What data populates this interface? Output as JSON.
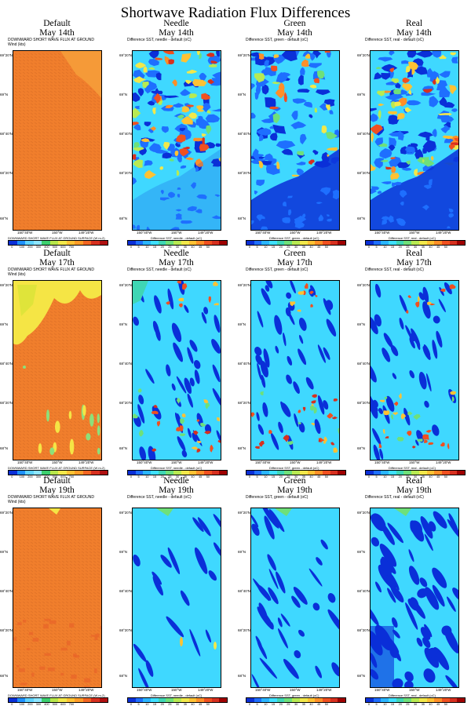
{
  "title": "Shortwave Radiation Flux Differences",
  "rows": [
    {
      "date": "May 14th",
      "panels": [
        {
          "name": "Default",
          "var": "DOWNWARD SHORT WAVE FLUX AT GROUND",
          "sub2": "Wind   (kts)",
          "cbar_title": "DOWNWARD SHORT WAVE FLUX AT GROUND SURFACE   (W m-2)"
        },
        {
          "name": "Needle",
          "var": "Difference SST, needle - default   (oC)",
          "sub2": "",
          "cbar_title": "Difference SST, needle - default   (oC)"
        },
        {
          "name": "Green",
          "var": "Difference SST, green - default   (oC)",
          "sub2": "",
          "cbar_title": "Difference SST, green - default   (oC)"
        },
        {
          "name": "Real",
          "var": "Difference SST, real - default   (oC)",
          "sub2": "",
          "cbar_title": "Difference SST, real - default   (oC)"
        }
      ]
    },
    {
      "date": "May 17th",
      "panels": [
        {
          "name": "Default",
          "var": "DOWNWARD SHORT WAVE FLUX AT GROUND",
          "sub2": "Wind   (kts)",
          "cbar_title": "DOWNWARD SHORT WAVE FLUX AT GROUND SURFACE   (W m-2)"
        },
        {
          "name": "Needle",
          "var": "Difference SST, needle - default   (oC)",
          "sub2": "",
          "cbar_title": "Difference SST, needle - default   (oC)"
        },
        {
          "name": "Green",
          "var": "Difference SST, green - default   (oC)",
          "sub2": "",
          "cbar_title": "Difference SST, green - default   (oC)"
        },
        {
          "name": "Real",
          "var": "Difference SST, real - default   (oC)",
          "sub2": "",
          "cbar_title": "Difference SST, real - default   (oC)"
        }
      ]
    },
    {
      "date": "May 19th",
      "panels": [
        {
          "name": "Default",
          "var": "DOWNWARD SHORT WAVE FLUX AT GROUND",
          "sub2": "Wind   (kts)",
          "cbar_title": "DOWNWARD SHORT WAVE FLUX AT GROUND SURFACE   (W m-2)"
        },
        {
          "name": "Needle",
          "var": "Difference SST, needle - default   (oC)",
          "sub2": "",
          "cbar_title": "Difference SST, needle - default   (oC)"
        },
        {
          "name": "Green",
          "var": "Difference SST, green - default   (oC)",
          "sub2": "",
          "cbar_title": "Difference SST, green - default   (oC)"
        },
        {
          "name": "Real",
          "var": "Difference SST, real - default   (oC)",
          "sub2": "",
          "cbar_title": "Difference SST, real - default   (oC)"
        }
      ]
    }
  ],
  "lat_labels": [
    "69°20'N",
    "69°N",
    "68°40'N",
    "68°20'N",
    "68°N"
  ],
  "lon_labels": [
    "150°40'W",
    "150°W",
    "149°20'W"
  ],
  "default_ticks": [
    "0",
    "100",
    "200",
    "300",
    "400",
    "500",
    "600",
    "700"
  ],
  "diff_ticks": [
    "0",
    "5",
    "10",
    "15",
    "20",
    "25",
    "30",
    "35",
    "40",
    "45",
    "50"
  ],
  "default_colors": [
    "#0a2fd8",
    "#1e90ff",
    "#5fd3ff",
    "#8ee6ff",
    "#3ccf6e",
    "#b7e64a",
    "#f2e84a",
    "#ffc233",
    "#ff9c28",
    "#f26522",
    "#d7301f",
    "#b01010"
  ],
  "diff_colors": [
    "#0a2fd8",
    "#1e6fff",
    "#2ab5ff",
    "#3fe0ff",
    "#3fd6b4",
    "#6ee07a",
    "#b8ea52",
    "#f2e84a",
    "#ffc233",
    "#ff8f28",
    "#f05020",
    "#d7301f",
    "#a00000"
  ]
}
